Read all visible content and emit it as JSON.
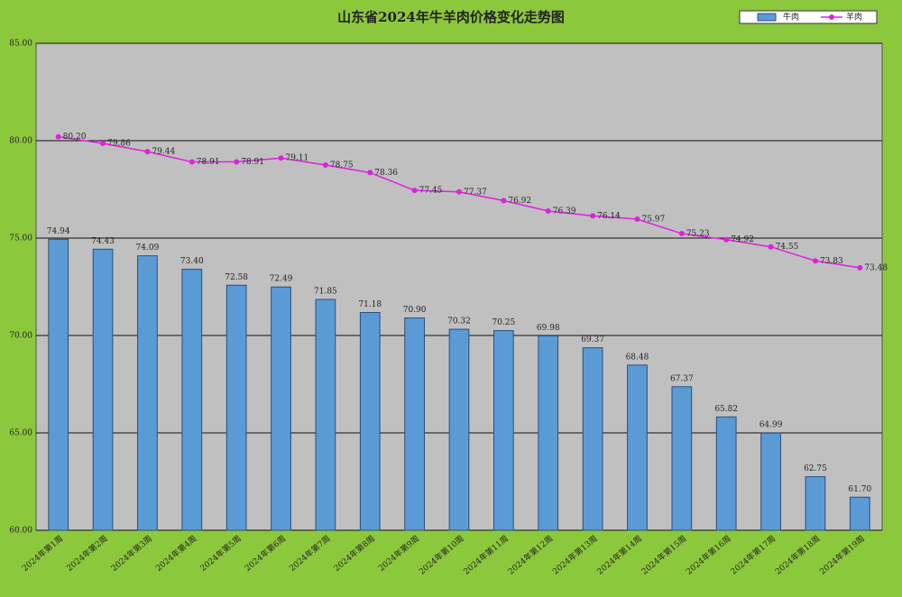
{
  "chart_data": {
    "type": "bar-line",
    "title": "山东省2024年牛羊肉价格变化走势图",
    "categories": [
      "2024年第1周",
      "2024年第2周",
      "2024年第3周",
      "2024年第4周",
      "2024年第5周",
      "2024年第6周",
      "2024年第7周",
      "2024年第8周",
      "2024年第9周",
      "2024年第10周",
      "2024年第11周",
      "2024年第12周",
      "2024年第13周",
      "2024年第14周",
      "2024年第15周",
      "2024年第16周",
      "2024年第17周",
      "2024年第18周",
      "2024年第19周"
    ],
    "series": [
      {
        "name": "牛肉",
        "type": "bar",
        "color": "#5b9bd5",
        "values": [
          74.94,
          74.43,
          74.09,
          73.4,
          72.58,
          72.49,
          71.85,
          71.18,
          70.9,
          70.32,
          70.25,
          69.98,
          69.37,
          68.48,
          67.37,
          65.82,
          64.99,
          62.75,
          61.7
        ],
        "value_labels": [
          "74.94",
          "74.43",
          "74.09",
          "73.40",
          "72.58",
          "72.49",
          "71.85",
          "71.18",
          "70.90",
          "70.32",
          "70.25",
          "69.98",
          "69.37",
          "68.48",
          "67.37",
          "65.82",
          "64.99",
          "62.75",
          "61.70"
        ]
      },
      {
        "name": "羊肉",
        "type": "line",
        "color": "#e020e0",
        "values": [
          80.2,
          79.86,
          79.44,
          78.91,
          78.91,
          79.11,
          78.75,
          78.36,
          77.45,
          77.37,
          76.92,
          76.39,
          76.14,
          75.97,
          75.23,
          74.92,
          74.55,
          73.83,
          73.48
        ],
        "value_labels": [
          "80.20",
          "79.86",
          "79.44",
          "78.91",
          "78.91",
          "79.11",
          "78.75",
          "78.36",
          "77.45",
          "77.37",
          "76.92",
          "76.39",
          "76.14",
          "75.97",
          "75.23",
          "74.92",
          "74.55",
          "73.83",
          "73.48"
        ]
      }
    ],
    "ylim": [
      60,
      85
    ],
    "yticks": [
      {
        "value": 60,
        "label": "60.00"
      },
      {
        "value": 65,
        "label": "65.00"
      },
      {
        "value": 70,
        "label": "70.00"
      },
      {
        "value": 75,
        "label": "75.00"
      },
      {
        "value": 80,
        "label": "80.00"
      },
      {
        "value": 85,
        "label": "85.00"
      }
    ],
    "grid": true,
    "legend": "top-right"
  }
}
